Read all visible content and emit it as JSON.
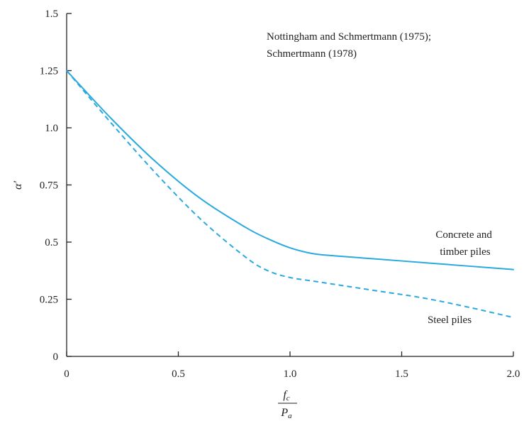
{
  "chart_data": {
    "type": "line",
    "title": "",
    "ylabel": "α′",
    "xlabel_numerator": "f",
    "xlabel_numerator_sub": "c",
    "xlabel_denominator": "P",
    "xlabel_denominator_sub": "a",
    "xlim": [
      0,
      2.0
    ],
    "ylim": [
      0,
      1.5
    ],
    "x_ticks": [
      0,
      0.5,
      1.0,
      1.5,
      2.0
    ],
    "x_tick_labels": [
      "0",
      "0.5",
      "1.0",
      "1.5",
      "2.0"
    ],
    "y_ticks": [
      0,
      0.25,
      0.5,
      0.75,
      1.0,
      1.25,
      1.5
    ],
    "y_tick_labels": [
      "0",
      "0.25",
      "0.5",
      "0.75",
      "1.0",
      "1.25",
      "1.5"
    ],
    "grid": false,
    "legend": "none",
    "annotations": [
      {
        "lines": [
          "Nottingham and Schmertmann (1975);",
          "Schmertmann (1978)"
        ],
        "position": "top-right"
      }
    ],
    "series": [
      {
        "name": "Concrete and timber piles",
        "label_lines": [
          "Concrete and",
          "timber piles"
        ],
        "style": "solid",
        "color": "#2aa9e0",
        "x": [
          0,
          0.2,
          0.4,
          0.6,
          0.8,
          0.9,
          1.0,
          1.1,
          1.2,
          1.4,
          1.6,
          1.8,
          2.0
        ],
        "y": [
          1.25,
          1.04,
          0.85,
          0.69,
          0.565,
          0.515,
          0.475,
          0.45,
          0.44,
          0.425,
          0.41,
          0.395,
          0.38
        ]
      },
      {
        "name": "Steel piles",
        "label_lines": [
          "Steel piles"
        ],
        "style": "dashed",
        "color": "#2aa9e0",
        "x": [
          0,
          0.2,
          0.4,
          0.6,
          0.8,
          0.9,
          1.0,
          1.1,
          1.2,
          1.4,
          1.6,
          1.8,
          2.0
        ],
        "y": [
          1.25,
          1.02,
          0.8,
          0.6,
          0.435,
          0.375,
          0.345,
          0.33,
          0.315,
          0.285,
          0.255,
          0.215,
          0.17
        ]
      }
    ]
  }
}
